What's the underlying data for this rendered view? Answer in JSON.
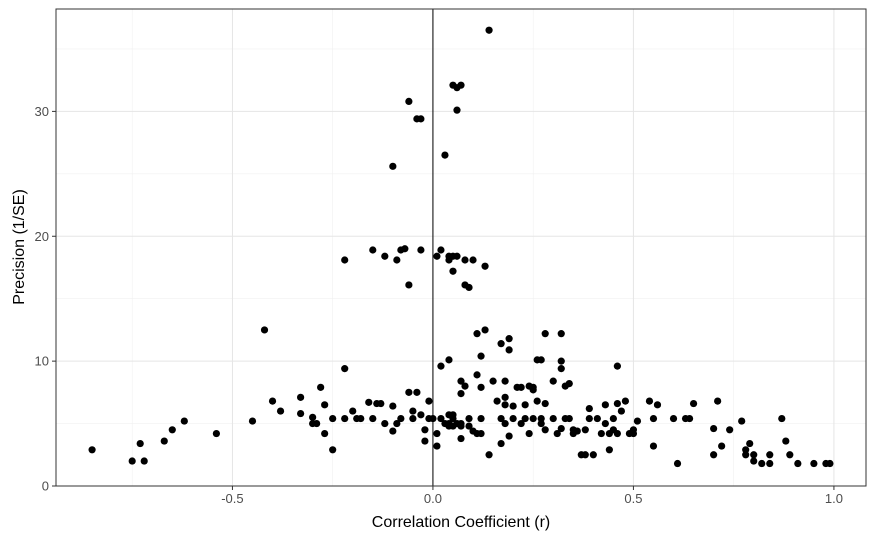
{
  "chart_data": {
    "type": "scatter",
    "title": "",
    "xlabel": "Correlation Coefficient (r)",
    "ylabel": "Precision (1/SE)",
    "xlim": [
      -0.94,
      1.08
    ],
    "ylim": [
      0,
      38.2
    ],
    "x_ticks": [
      {
        "value": -0.5,
        "label": "-0.5"
      },
      {
        "value": 0.0,
        "label": "0.0"
      },
      {
        "value": 0.5,
        "label": "0.5"
      },
      {
        "value": 1.0,
        "label": "1.0"
      }
    ],
    "y_ticks": [
      {
        "value": 0,
        "label": "0"
      },
      {
        "value": 10,
        "label": "10"
      },
      {
        "value": 20,
        "label": "20"
      },
      {
        "value": 30,
        "label": "30"
      }
    ],
    "reference_line_x": 0,
    "grid": true,
    "point_color": "#000000",
    "points": [
      [
        -0.85,
        2.9
      ],
      [
        -0.75,
        2.0
      ],
      [
        -0.73,
        3.4
      ],
      [
        -0.72,
        2.0
      ],
      [
        -0.67,
        3.6
      ],
      [
        -0.65,
        4.5
      ],
      [
        -0.62,
        5.2
      ],
      [
        -0.54,
        4.2
      ],
      [
        -0.45,
        5.2
      ],
      [
        -0.42,
        12.5
      ],
      [
        -0.4,
        6.8
      ],
      [
        -0.38,
        6.0
      ],
      [
        -0.33,
        7.1
      ],
      [
        -0.33,
        5.8
      ],
      [
        -0.3,
        5.5
      ],
      [
        -0.3,
        5.0
      ],
      [
        -0.29,
        5.0
      ],
      [
        -0.28,
        7.9
      ],
      [
        -0.27,
        6.5
      ],
      [
        -0.27,
        4.2
      ],
      [
        -0.25,
        2.9
      ],
      [
        -0.25,
        5.4
      ],
      [
        -0.22,
        9.4
      ],
      [
        -0.22,
        5.4
      ],
      [
        -0.22,
        18.1
      ],
      [
        -0.2,
        6.0
      ],
      [
        -0.19,
        5.4
      ],
      [
        -0.18,
        5.4
      ],
      [
        -0.16,
        6.7
      ],
      [
        -0.15,
        5.4
      ],
      [
        -0.15,
        18.9
      ],
      [
        -0.14,
        6.6
      ],
      [
        -0.13,
        6.6
      ],
      [
        -0.12,
        5.0
      ],
      [
        -0.12,
        18.4
      ],
      [
        -0.1,
        4.4
      ],
      [
        -0.1,
        25.6
      ],
      [
        -0.1,
        6.4
      ],
      [
        -0.09,
        5.0
      ],
      [
        -0.09,
        18.1
      ],
      [
        -0.08,
        5.4
      ],
      [
        -0.08,
        18.9
      ],
      [
        -0.07,
        19.0
      ],
      [
        -0.06,
        7.5
      ],
      [
        -0.06,
        16.1
      ],
      [
        -0.06,
        30.8
      ],
      [
        -0.05,
        6.0
      ],
      [
        -0.05,
        5.4
      ],
      [
        -0.04,
        29.4
      ],
      [
        -0.04,
        7.5
      ],
      [
        -0.03,
        29.4
      ],
      [
        -0.03,
        18.9
      ],
      [
        -0.03,
        5.7
      ],
      [
        -0.02,
        3.6
      ],
      [
        -0.02,
        4.5
      ],
      [
        -0.01,
        5.4
      ],
      [
        -0.01,
        6.8
      ],
      [
        0.0,
        5.4
      ],
      [
        0.01,
        3.2
      ],
      [
        0.01,
        4.2
      ],
      [
        0.01,
        18.4
      ],
      [
        0.02,
        9.6
      ],
      [
        0.02,
        18.9
      ],
      [
        0.02,
        5.4
      ],
      [
        0.03,
        26.5
      ],
      [
        0.03,
        5.0
      ],
      [
        0.04,
        4.8
      ],
      [
        0.04,
        5.0
      ],
      [
        0.04,
        18.1
      ],
      [
        0.04,
        5.7
      ],
      [
        0.04,
        18.4
      ],
      [
        0.04,
        10.1
      ],
      [
        0.05,
        17.2
      ],
      [
        0.05,
        32.1
      ],
      [
        0.05,
        18.4
      ],
      [
        0.05,
        5.4
      ],
      [
        0.05,
        5.7
      ],
      [
        0.05,
        4.8
      ],
      [
        0.06,
        31.9
      ],
      [
        0.06,
        5.0
      ],
      [
        0.06,
        30.1
      ],
      [
        0.06,
        18.4
      ],
      [
        0.07,
        7.4
      ],
      [
        0.07,
        5.0
      ],
      [
        0.07,
        32.1
      ],
      [
        0.07,
        4.8
      ],
      [
        0.07,
        3.8
      ],
      [
        0.07,
        8.4
      ],
      [
        0.08,
        8.0
      ],
      [
        0.08,
        18.1
      ],
      [
        0.08,
        16.1
      ],
      [
        0.09,
        5.4
      ],
      [
        0.09,
        4.8
      ],
      [
        0.09,
        15.9
      ],
      [
        0.1,
        4.4
      ],
      [
        0.1,
        18.1
      ],
      [
        0.11,
        8.9
      ],
      [
        0.11,
        4.2
      ],
      [
        0.11,
        12.2
      ],
      [
        0.12,
        4.2
      ],
      [
        0.12,
        7.9
      ],
      [
        0.12,
        10.4
      ],
      [
        0.12,
        5.4
      ],
      [
        0.13,
        17.6
      ],
      [
        0.13,
        12.5
      ],
      [
        0.14,
        36.5
      ],
      [
        0.14,
        2.5
      ],
      [
        0.15,
        8.4
      ],
      [
        0.16,
        6.8
      ],
      [
        0.17,
        11.4
      ],
      [
        0.17,
        3.4
      ],
      [
        0.17,
        5.4
      ],
      [
        0.18,
        5.0
      ],
      [
        0.18,
        8.4
      ],
      [
        0.18,
        6.5
      ],
      [
        0.18,
        7.1
      ],
      [
        0.19,
        11.8
      ],
      [
        0.19,
        10.9
      ],
      [
        0.19,
        4.0
      ],
      [
        0.2,
        5.4
      ],
      [
        0.2,
        6.4
      ],
      [
        0.21,
        7.9
      ],
      [
        0.22,
        5.0
      ],
      [
        0.22,
        7.9
      ],
      [
        0.23,
        6.5
      ],
      [
        0.23,
        5.4
      ],
      [
        0.24,
        4.2
      ],
      [
        0.24,
        8.0
      ],
      [
        0.25,
        7.7
      ],
      [
        0.25,
        5.4
      ],
      [
        0.25,
        7.9
      ],
      [
        0.26,
        6.8
      ],
      [
        0.26,
        10.1
      ],
      [
        0.27,
        10.1
      ],
      [
        0.27,
        5.0
      ],
      [
        0.27,
        5.4
      ],
      [
        0.28,
        4.5
      ],
      [
        0.28,
        12.2
      ],
      [
        0.28,
        6.6
      ],
      [
        0.3,
        5.4
      ],
      [
        0.3,
        8.4
      ],
      [
        0.31,
        4.2
      ],
      [
        0.32,
        12.2
      ],
      [
        0.32,
        4.6
      ],
      [
        0.32,
        10.0
      ],
      [
        0.32,
        9.4
      ],
      [
        0.33,
        8.0
      ],
      [
        0.33,
        5.4
      ],
      [
        0.34,
        5.4
      ],
      [
        0.34,
        8.2
      ],
      [
        0.35,
        4.5
      ],
      [
        0.35,
        4.2
      ],
      [
        0.36,
        4.4
      ],
      [
        0.37,
        2.5
      ],
      [
        0.38,
        2.5
      ],
      [
        0.38,
        4.5
      ],
      [
        0.39,
        5.4
      ],
      [
        0.39,
        6.2
      ],
      [
        0.4,
        2.5
      ],
      [
        0.41,
        5.4
      ],
      [
        0.42,
        4.2
      ],
      [
        0.43,
        5.0
      ],
      [
        0.43,
        6.5
      ],
      [
        0.44,
        2.9
      ],
      [
        0.44,
        4.2
      ],
      [
        0.45,
        5.4
      ],
      [
        0.45,
        4.5
      ],
      [
        0.46,
        9.6
      ],
      [
        0.46,
        4.2
      ],
      [
        0.46,
        6.6
      ],
      [
        0.47,
        6.0
      ],
      [
        0.48,
        6.8
      ],
      [
        0.49,
        4.2
      ],
      [
        0.5,
        4.5
      ],
      [
        0.5,
        4.2
      ],
      [
        0.51,
        5.2
      ],
      [
        0.54,
        6.8
      ],
      [
        0.55,
        5.4
      ],
      [
        0.55,
        3.2
      ],
      [
        0.56,
        6.5
      ],
      [
        0.6,
        5.4
      ],
      [
        0.61,
        1.8
      ],
      [
        0.63,
        5.4
      ],
      [
        0.64,
        5.4
      ],
      [
        0.65,
        6.6
      ],
      [
        0.7,
        4.6
      ],
      [
        0.7,
        2.5
      ],
      [
        0.71,
        6.8
      ],
      [
        0.72,
        3.2
      ],
      [
        0.74,
        4.5
      ],
      [
        0.77,
        5.2
      ],
      [
        0.78,
        2.9
      ],
      [
        0.78,
        2.5
      ],
      [
        0.79,
        3.4
      ],
      [
        0.8,
        2.0
      ],
      [
        0.8,
        2.5
      ],
      [
        0.82,
        1.8
      ],
      [
        0.84,
        1.8
      ],
      [
        0.84,
        2.5
      ],
      [
        0.87,
        5.4
      ],
      [
        0.88,
        3.6
      ],
      [
        0.89,
        2.5
      ],
      [
        0.91,
        1.8
      ],
      [
        0.95,
        1.8
      ],
      [
        0.98,
        1.8
      ],
      [
        0.99,
        1.8
      ]
    ]
  }
}
